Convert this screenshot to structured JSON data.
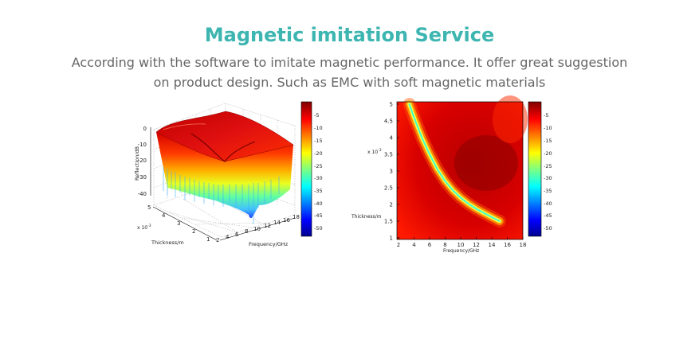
{
  "header": {
    "title": "Magnetic imitation Service",
    "description": "According with the software to imitate magnetic performance. It offer great suggestion on product design. Such as EMC with soft magnetic materials"
  },
  "colors": {
    "title": "#3db5b0",
    "text": "#666666"
  },
  "chart_data": [
    {
      "type": "surface3d",
      "xlabel": "Frequency/GHz",
      "ylabel": "Thickness/m",
      "zlabel": "Reflection/dB",
      "x_ticks": [
        "2",
        "4",
        "6",
        "8",
        "10",
        "12",
        "14",
        "16",
        "18"
      ],
      "y_ticks": [
        "1",
        "2",
        "3",
        "4",
        "5"
      ],
      "y_scale_label": "x 10",
      "y_scale_exp": "-3",
      "z_ticks": [
        "0",
        "-10",
        "-20",
        "-30",
        "-40"
      ],
      "xlim": [
        2,
        18
      ],
      "ylim": [
        1,
        5
      ],
      "zlim": [
        -45,
        0
      ],
      "colorbar_ticks": [
        "-5",
        "-10",
        "-15",
        "-20",
        "-25",
        "-30",
        "-35",
        "-40",
        "-45",
        "-50"
      ],
      "colormap": "jet"
    },
    {
      "type": "heatmap",
      "xlabel": "Frequency/GHz",
      "ylabel": "Thickness/m",
      "x_ticks": [
        "2",
        "4",
        "6",
        "8",
        "10",
        "12",
        "14",
        "16",
        "18"
      ],
      "y_ticks": [
        "1",
        "1.5",
        "2",
        "2.5",
        "3",
        "3.5",
        "4",
        "4.5",
        "5"
      ],
      "y_scale_label": "x 10",
      "y_scale_exp": "-3",
      "xlim": [
        2,
        18
      ],
      "ylim": [
        1,
        5
      ],
      "colorbar_ticks": [
        "-5",
        "-10",
        "-15",
        "-20",
        "-25",
        "-30",
        "-35",
        "-40",
        "-45",
        "-50"
      ],
      "colormap": "jet",
      "absorption_curve": [
        [
          3.4,
          5.0
        ],
        [
          4.0,
          4.6
        ],
        [
          5.0,
          4.0
        ],
        [
          6.0,
          3.5
        ],
        [
          7.0,
          3.05
        ],
        [
          8.0,
          2.7
        ],
        [
          9.0,
          2.42
        ],
        [
          10.0,
          2.2
        ],
        [
          11.0,
          2.02
        ],
        [
          12.0,
          1.87
        ],
        [
          13.0,
          1.74
        ],
        [
          14.0,
          1.62
        ],
        [
          15.0,
          1.5
        ]
      ]
    }
  ]
}
